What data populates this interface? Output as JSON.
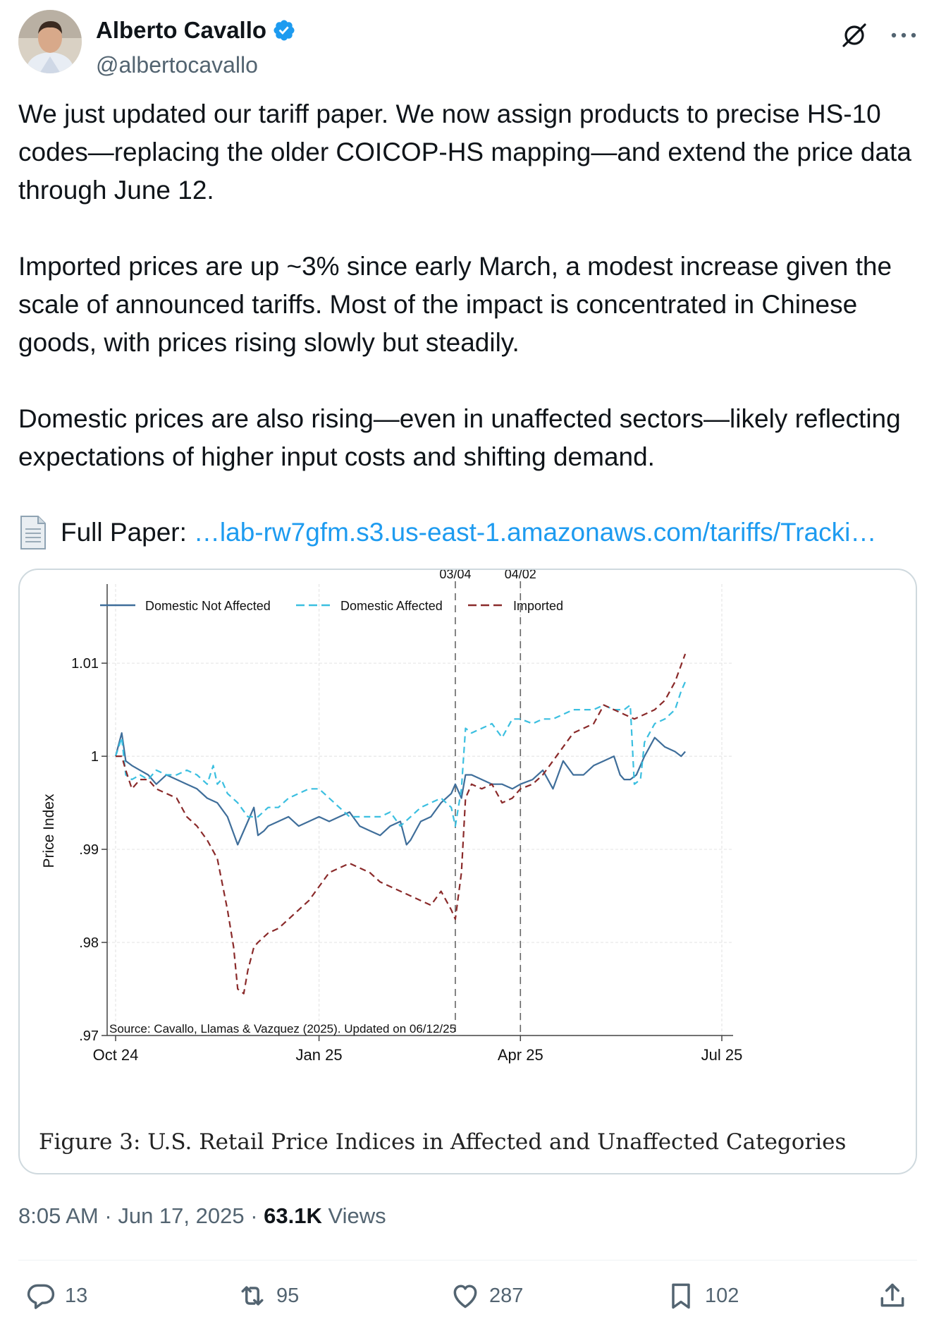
{
  "author": {
    "display_name": "Alberto Cavallo",
    "handle": "@albertocavallo",
    "verified": true
  },
  "tweet": {
    "paragraphs": [
      "We just updated our tariff paper. We now assign products to precise HS-10 codes—replacing the older COICOP-HS mapping—and extend the price data through June 12.",
      "Imported prices are up ~3% since early March, a modest increase given the scale of announced tariffs. Most of the impact is concentrated in Chinese goods, with prices rising slowly but steadily.",
      "Domestic prices are also rising—even in unaffected sectors—likely reflecting expectations of higher input costs and shifting demand."
    ],
    "paper_label": "Full Paper:",
    "paper_link": "…lab-rw7gfm.s3.us-east-1.amazonaws.com/tariffs/Tracki…"
  },
  "chart_data": {
    "type": "line",
    "title": "",
    "caption": "Figure 3:  U.S. Retail Price Indices in Affected and Unaffected Categories",
    "ylabel": "Price Index",
    "xlabel": "",
    "source_note": "Source: Cavallo, Llamas & Vazquez (2025). Updated on 06/12/25",
    "ylim": [
      0.97,
      1.0185
    ],
    "xlim_days": [
      0,
      300
    ],
    "y_ticks": [
      {
        "value": 0.97,
        "label": ".97"
      },
      {
        "value": 0.98,
        "label": ".98"
      },
      {
        "value": 0.99,
        "label": ".99"
      },
      {
        "value": 1.0,
        "label": "1"
      },
      {
        "value": 1.01,
        "label": "1.01"
      }
    ],
    "x_ticks": [
      {
        "day": 0,
        "label": "Oct 24"
      },
      {
        "day": 100,
        "label": "Jan 25"
      },
      {
        "day": 199,
        "label": "Apr 25"
      },
      {
        "day": 298,
        "label": "Jul 25"
      }
    ],
    "event_lines": [
      {
        "day": 167,
        "label": "03/04"
      },
      {
        "day": 199,
        "label": "04/02"
      }
    ],
    "grid": true,
    "legend_position": "top",
    "series": [
      {
        "name": "Domestic Not Affected",
        "style": "solid",
        "color": "#3f6e9a",
        "x": [
          0,
          3,
          5,
          8,
          12,
          16,
          20,
          25,
          30,
          35,
          40,
          45,
          50,
          55,
          60,
          65,
          68,
          70,
          73,
          75,
          80,
          85,
          90,
          95,
          100,
          105,
          110,
          115,
          120,
          125,
          130,
          135,
          140,
          143,
          145,
          150,
          155,
          160,
          165,
          167,
          170,
          172,
          175,
          180,
          185,
          190,
          195,
          199,
          205,
          210,
          215,
          220,
          225,
          230,
          235,
          240,
          245,
          248,
          250,
          253,
          256,
          260,
          265,
          270,
          275,
          278,
          280
        ],
        "values": [
          1.0,
          1.0025,
          0.9995,
          0.999,
          0.9985,
          0.998,
          0.997,
          0.998,
          0.9975,
          0.997,
          0.9965,
          0.9955,
          0.995,
          0.9935,
          0.9905,
          0.993,
          0.9945,
          0.9915,
          0.992,
          0.9925,
          0.993,
          0.9935,
          0.9925,
          0.993,
          0.9935,
          0.993,
          0.9935,
          0.994,
          0.9925,
          0.992,
          0.9915,
          0.9925,
          0.993,
          0.9905,
          0.991,
          0.993,
          0.9935,
          0.995,
          0.996,
          0.997,
          0.9955,
          0.998,
          0.998,
          0.9975,
          0.997,
          0.997,
          0.9965,
          0.997,
          0.9975,
          0.9985,
          0.9965,
          0.9995,
          0.998,
          0.998,
          0.999,
          0.9995,
          1.0,
          0.998,
          0.9975,
          0.9975,
          0.998,
          1.0,
          1.002,
          1.001,
          1.0005,
          1.0,
          1.0005
        ]
      },
      {
        "name": "Domestic Affected",
        "style": "dashed",
        "color": "#3bbfe0",
        "x": [
          0,
          3,
          5,
          8,
          12,
          16,
          20,
          25,
          30,
          35,
          40,
          45,
          48,
          50,
          52,
          55,
          60,
          65,
          70,
          75,
          80,
          85,
          90,
          95,
          100,
          105,
          110,
          115,
          120,
          125,
          130,
          135,
          140,
          145,
          150,
          155,
          160,
          165,
          167,
          170,
          172,
          175,
          180,
          185,
          190,
          195,
          199,
          205,
          210,
          215,
          220,
          225,
          230,
          235,
          240,
          245,
          250,
          253,
          255,
          258,
          260,
          265,
          270,
          275,
          278,
          280
        ],
        "values": [
          1.0,
          1.002,
          0.998,
          0.9975,
          0.998,
          0.9975,
          0.9985,
          0.998,
          0.998,
          0.9985,
          0.998,
          0.997,
          0.999,
          0.997,
          0.9975,
          0.996,
          0.995,
          0.9935,
          0.9935,
          0.9945,
          0.9945,
          0.9955,
          0.996,
          0.9965,
          0.9965,
          0.9955,
          0.9945,
          0.9935,
          0.9935,
          0.9935,
          0.9935,
          0.994,
          0.9925,
          0.9935,
          0.9945,
          0.995,
          0.9955,
          0.9945,
          0.9925,
          0.9965,
          1.003,
          1.0025,
          1.003,
          1.0035,
          1.002,
          1.004,
          1.004,
          1.0035,
          1.004,
          1.004,
          1.0045,
          1.005,
          1.005,
          1.005,
          1.0055,
          1.005,
          1.005,
          1.0055,
          0.997,
          0.9975,
          1.0015,
          1.0035,
          1.004,
          1.005,
          1.007,
          1.008
        ]
      },
      {
        "name": "Imported",
        "style": "dashed",
        "color": "#8a2a2a",
        "x": [
          0,
          3,
          5,
          8,
          12,
          16,
          20,
          25,
          30,
          35,
          40,
          45,
          50,
          55,
          58,
          60,
          63,
          65,
          68,
          70,
          75,
          80,
          85,
          90,
          95,
          100,
          105,
          110,
          115,
          120,
          125,
          130,
          135,
          140,
          145,
          150,
          155,
          160,
          165,
          167,
          170,
          172,
          175,
          180,
          185,
          190,
          195,
          199,
          205,
          210,
          215,
          220,
          225,
          230,
          235,
          240,
          245,
          250,
          255,
          260,
          265,
          270,
          275,
          280
        ],
        "values": [
          1.0,
          1.0,
          0.9985,
          0.9965,
          0.9975,
          0.9975,
          0.9965,
          0.996,
          0.9955,
          0.9935,
          0.9925,
          0.991,
          0.989,
          0.9835,
          0.9795,
          0.975,
          0.9745,
          0.977,
          0.9795,
          0.98,
          0.981,
          0.9815,
          0.9825,
          0.9835,
          0.9845,
          0.986,
          0.9875,
          0.988,
          0.9885,
          0.988,
          0.9875,
          0.9865,
          0.986,
          0.9855,
          0.985,
          0.9845,
          0.984,
          0.9855,
          0.9835,
          0.9825,
          0.9875,
          0.9955,
          0.997,
          0.9965,
          0.997,
          0.995,
          0.9955,
          0.9965,
          0.997,
          0.998,
          0.9995,
          1.001,
          1.0025,
          1.003,
          1.0035,
          1.0055,
          1.005,
          1.0045,
          1.004,
          1.0045,
          1.005,
          1.006,
          1.008,
          1.011
        ]
      }
    ]
  },
  "meta": {
    "time": "8:05 AM",
    "date": "Jun 17, 2025",
    "views_count": "63.1K",
    "views_label": "Views",
    "separator": "·"
  },
  "actions": {
    "replies": "13",
    "reposts": "95",
    "likes": "287",
    "bookmarks": "102"
  },
  "colors": {
    "link": "#1d9bf0",
    "verified": "#1d9bf0",
    "muted": "#536471"
  }
}
